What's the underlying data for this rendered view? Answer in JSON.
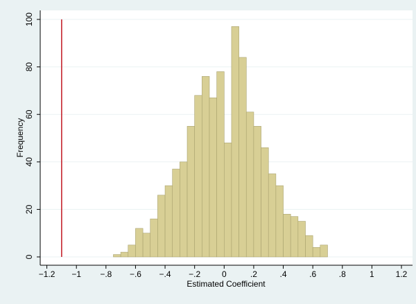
{
  "chart_data": {
    "type": "histogram",
    "x_label": "Estimated Coefficient",
    "y_label": "Frequency",
    "bins": [
      -0.75,
      -0.7,
      -0.65,
      -0.6,
      -0.55,
      -0.5,
      -0.45,
      -0.4,
      -0.35,
      -0.3,
      -0.25,
      -0.2,
      -0.15,
      -0.1,
      -0.05,
      0.0,
      0.05,
      0.1,
      0.15,
      0.2,
      0.25,
      0.3,
      0.35,
      0.4,
      0.45,
      0.5,
      0.55,
      0.6,
      0.65,
      0.7
    ],
    "values": [
      1,
      2,
      5,
      12,
      10,
      16,
      26,
      30,
      37,
      40,
      55,
      68,
      76,
      67,
      78,
      48,
      97,
      84,
      61,
      55,
      46,
      35,
      30,
      18,
      17,
      15,
      9,
      4,
      5
    ],
    "color": "#d8cf95",
    "edge_color": "#a9a26e",
    "vline": {
      "x": -1.1,
      "color": "#c0141e"
    },
    "xlim": [
      -1.245,
      1.275
    ],
    "ylim": [
      -3.5,
      103.8
    ],
    "xticks": [
      {
        "value": -1.2,
        "label": "−1.2"
      },
      {
        "value": -1,
        "label": "−1"
      },
      {
        "value": -0.8,
        "label": "−.8"
      },
      {
        "value": -0.6,
        "label": "−.6"
      },
      {
        "value": -0.4,
        "label": "−.4"
      },
      {
        "value": -0.2,
        "label": "−.2"
      },
      0,
      {
        "value": 0.2,
        "label": ".2"
      },
      {
        "value": 0.4,
        "label": ".4"
      },
      {
        "value": 0.6,
        "label": ".6"
      },
      {
        "value": 0.8,
        "label": ".8"
      },
      1,
      {
        "value": 1.2,
        "label": "1.2"
      }
    ],
    "yticks": [
      0,
      20,
      40,
      60,
      80,
      100
    ],
    "grid": true
  }
}
